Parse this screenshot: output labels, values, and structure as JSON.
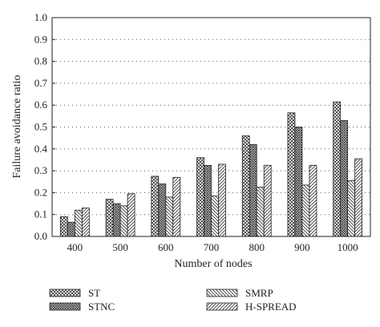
{
  "chart_data": {
    "type": "bar",
    "xlabel": "Number of nodes",
    "ylabel": "Failure avoidance ratio",
    "ylim": [
      0,
      1.0
    ],
    "yticks": [
      "0.0",
      "0.1",
      "0.2",
      "0.3",
      "0.4",
      "0.5",
      "0.6",
      "0.7",
      "0.8",
      "0.9",
      "1.0"
    ],
    "categories": [
      "400",
      "500",
      "600",
      "700",
      "800",
      "900",
      "1000"
    ],
    "grid": "horizontal dotted",
    "legend_position": "bottom",
    "series": [
      {
        "name": "ST",
        "pattern": "crosshatch-fine",
        "values": [
          0.09,
          0.17,
          0.275,
          0.36,
          0.46,
          0.565,
          0.615
        ]
      },
      {
        "name": "STNC",
        "pattern": "dense-dots",
        "values": [
          0.065,
          0.15,
          0.24,
          0.325,
          0.42,
          0.5,
          0.53
        ]
      },
      {
        "name": "SMRP",
        "pattern": "backslash",
        "values": [
          0.12,
          0.14,
          0.18,
          0.185,
          0.225,
          0.235,
          0.255
        ]
      },
      {
        "name": "H-SPREAD",
        "pattern": "slash",
        "values": [
          0.13,
          0.195,
          0.27,
          0.33,
          0.325,
          0.325,
          0.355
        ]
      }
    ]
  }
}
